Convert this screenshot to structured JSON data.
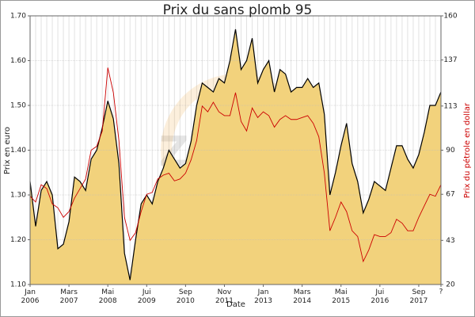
{
  "chart_data": {
    "type": "line",
    "title": "Prix du sans plomb 95",
    "xlabel": "Date",
    "ylabel": "Prix en euro",
    "y2label": "Prix du pétrole en dollar",
    "watermark": "ZAGAZ",
    "categories": [
      "Jan 2006",
      null,
      null,
      null,
      null,
      null,
      null,
      "Mars 2007",
      null,
      null,
      null,
      null,
      null,
      null,
      "Mai 2008",
      null,
      null,
      null,
      null,
      null,
      null,
      "Jui 2009",
      null,
      null,
      null,
      null,
      null,
      null,
      "Sep 2010",
      null,
      null,
      null,
      null,
      null,
      null,
      "Nov 2011",
      null,
      null,
      null,
      null,
      null,
      null,
      "Jan 2013",
      null,
      null,
      null,
      null,
      null,
      null,
      "Mars 2014",
      null,
      null,
      null,
      null,
      null,
      null,
      "Mai 2015",
      null,
      null,
      null,
      null,
      null,
      null,
      "Jui 2016",
      null,
      null,
      null,
      null,
      null,
      null,
      "Sep 2017",
      null,
      null,
      null,
      "?"
    ],
    "series": [
      {
        "name": "Prix en euro",
        "color": "#000000",
        "fill": "#f2d27c",
        "axis": "y",
        "values": [
          1.33,
          1.23,
          1.31,
          1.33,
          1.3,
          1.18,
          1.19,
          1.24,
          1.34,
          1.33,
          1.31,
          1.38,
          1.4,
          1.45,
          1.51,
          1.47,
          1.37,
          1.17,
          1.11,
          1.2,
          1.28,
          1.3,
          1.28,
          1.33,
          1.36,
          1.4,
          1.38,
          1.36,
          1.37,
          1.42,
          1.5,
          1.55,
          1.54,
          1.53,
          1.56,
          1.55,
          1.6,
          1.67,
          1.58,
          1.6,
          1.65,
          1.55,
          1.58,
          1.6,
          1.53,
          1.58,
          1.57,
          1.53,
          1.54,
          1.54,
          1.56,
          1.54,
          1.55,
          1.48,
          1.3,
          1.35,
          1.41,
          1.46,
          1.37,
          1.33,
          1.26,
          1.29,
          1.33,
          1.32,
          1.31,
          1.36,
          1.41,
          1.41,
          1.38,
          1.36,
          1.39,
          1.44,
          1.5,
          1.5,
          1.53
        ]
      },
      {
        "name": "Prix du pétrole en dollar",
        "color": "#cc0000",
        "axis": "y2",
        "values": [
          66,
          63,
          72,
          70,
          62,
          60,
          55,
          58,
          65,
          70,
          75,
          90,
          92,
          100,
          133,
          120,
          95,
          55,
          43,
          47,
          58,
          67,
          68,
          75,
          77,
          78,
          74,
          75,
          78,
          85,
          95,
          113,
          110,
          115,
          110,
          108,
          108,
          120,
          105,
          100,
          112,
          107,
          110,
          108,
          102,
          106,
          108,
          106,
          106,
          107,
          108,
          104,
          97,
          78,
          48,
          55,
          63,
          58,
          48,
          45,
          32,
          38,
          46,
          45,
          45,
          47,
          54,
          52,
          48,
          48,
          55,
          61,
          67,
          66,
          72
        ]
      }
    ],
    "ylim": [
      1.1,
      1.7
    ],
    "yticks": [
      {
        "value": 1.1,
        "label": "1.10"
      },
      {
        "value": 1.2,
        "label": "1.20"
      },
      {
        "value": 1.3,
        "label": "1.30"
      },
      {
        "value": 1.4,
        "label": "1.40"
      },
      {
        "value": 1.5,
        "label": "1.50"
      },
      {
        "value": 1.6,
        "label": "1.60"
      },
      {
        "value": 1.7,
        "label": "1.70"
      }
    ],
    "y2lim": [
      20,
      160
    ],
    "y2ticks": [
      20,
      43,
      67,
      90,
      113,
      137,
      160
    ],
    "grid": true
  }
}
